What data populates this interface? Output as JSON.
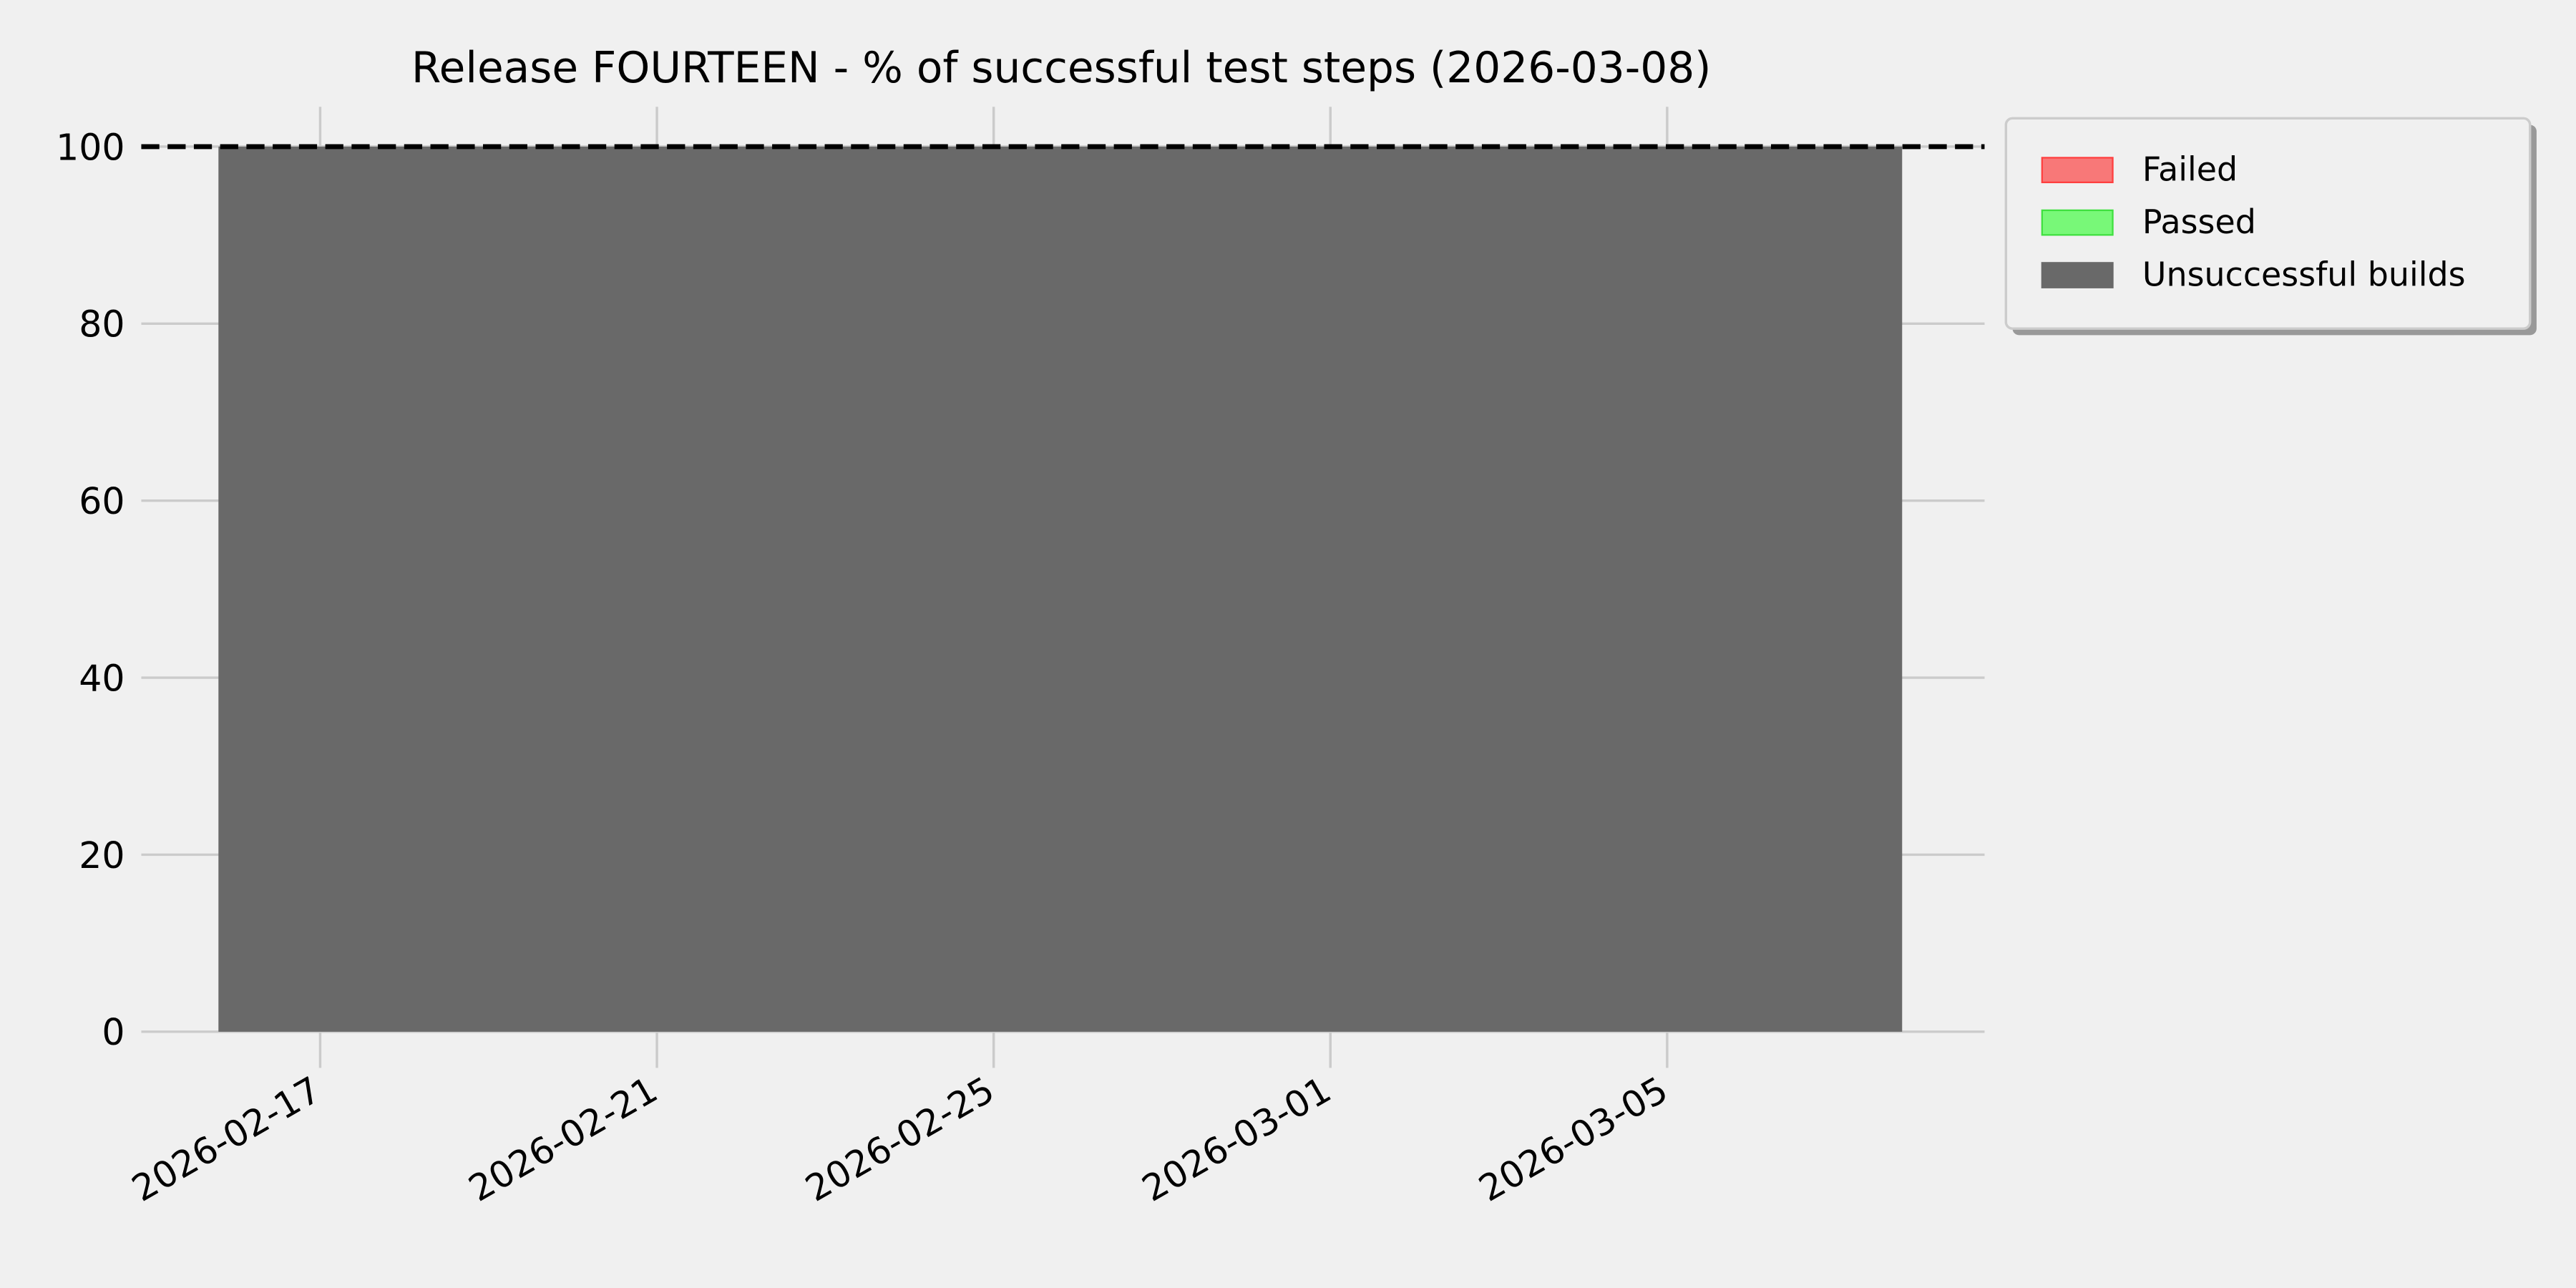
{
  "chart_data": {
    "type": "area",
    "stacked": true,
    "title": "Release FOURTEEN - % of successful test steps (2026-03-08)",
    "xlabel": "",
    "ylabel": "",
    "x_axis_type": "date",
    "xlim": [
      "2026-02-14T21:00",
      "2026-03-08T18:30"
    ],
    "ylim": [
      0,
      104.5
    ],
    "x_ticks": [
      "2026-02-17",
      "2026-02-21",
      "2026-02-25",
      "2026-03-01",
      "2026-03-05"
    ],
    "y_ticks": [
      0,
      20,
      40,
      60,
      80,
      100
    ],
    "grid": true,
    "reference_line": {
      "y": 100,
      "style": "dashed",
      "color": "#000000"
    },
    "legend": {
      "placement": "outside-top-right",
      "shadow": true
    },
    "x": [
      "2026-02-15T19:00",
      "2026-03-07T19:00"
    ],
    "series": [
      {
        "name": "Failed",
        "color": "#f87878",
        "edge": "#ff4040",
        "values": [
          0,
          0
        ]
      },
      {
        "name": "Passed",
        "color": "#78f878",
        "edge": "#40e040",
        "values": [
          0,
          0
        ]
      },
      {
        "name": "Unsuccessful builds",
        "color": "#696969",
        "edge": "#696969",
        "values": [
          100,
          100
        ]
      }
    ]
  }
}
